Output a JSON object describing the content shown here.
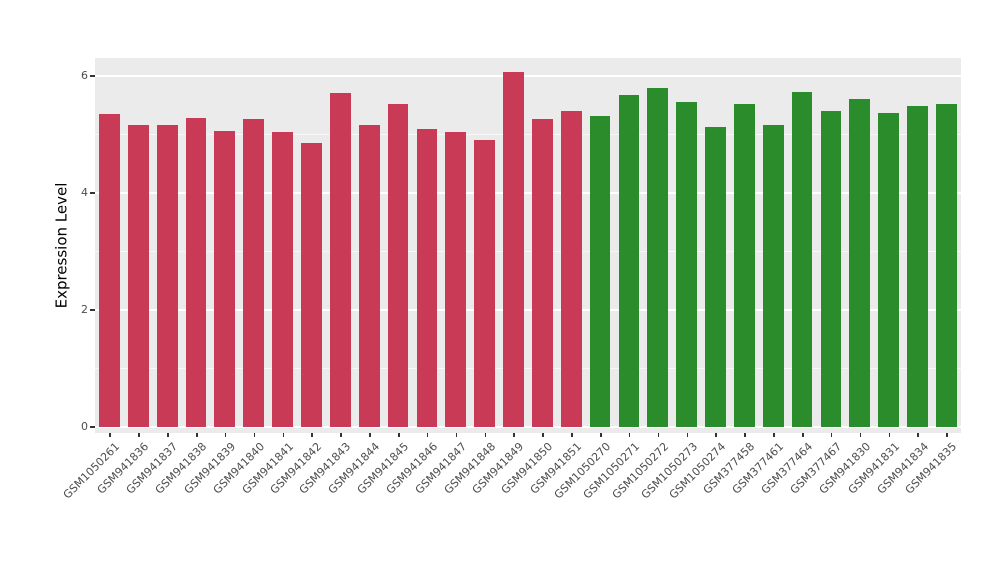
{
  "chart_data": {
    "type": "bar",
    "title": "",
    "xlabel": "",
    "ylabel": "Expression Level",
    "ylim": [
      0,
      6.4
    ],
    "yticks_major": [
      0,
      2,
      4,
      6
    ],
    "yticks_minor": [
      1,
      3,
      5
    ],
    "legend": "none",
    "grid": "white major and minor horizontal gridlines on gray panel",
    "panel_background": "#EBEBEB",
    "group_colors": {
      "group1": "#C93A57",
      "group2": "#2B8C2B"
    },
    "bars": [
      {
        "label": "GSM1050261",
        "value": 5.35,
        "color": "#C93A57"
      },
      {
        "label": "GSM941836",
        "value": 5.17,
        "color": "#C93A57"
      },
      {
        "label": "GSM941837",
        "value": 5.16,
        "color": "#C93A57"
      },
      {
        "label": "GSM941838",
        "value": 5.28,
        "color": "#C93A57"
      },
      {
        "label": "GSM941839",
        "value": 5.06,
        "color": "#C93A57"
      },
      {
        "label": "GSM941840",
        "value": 5.27,
        "color": "#C93A57"
      },
      {
        "label": "GSM941841",
        "value": 5.05,
        "color": "#C93A57"
      },
      {
        "label": "GSM941842",
        "value": 4.86,
        "color": "#C93A57"
      },
      {
        "label": "GSM941843",
        "value": 5.71,
        "color": "#C93A57"
      },
      {
        "label": "GSM941844",
        "value": 5.17,
        "color": "#C93A57"
      },
      {
        "label": "GSM941845",
        "value": 5.52,
        "color": "#C93A57"
      },
      {
        "label": "GSM941846",
        "value": 5.09,
        "color": "#C93A57"
      },
      {
        "label": "GSM941847",
        "value": 5.04,
        "color": "#C93A57"
      },
      {
        "label": "GSM941848",
        "value": 4.91,
        "color": "#C93A57"
      },
      {
        "label": "GSM941849",
        "value": 6.07,
        "color": "#C93A57"
      },
      {
        "label": "GSM941850",
        "value": 5.26,
        "color": "#C93A57"
      },
      {
        "label": "GSM941851",
        "value": 5.41,
        "color": "#C93A57"
      },
      {
        "label": "GSM1050270",
        "value": 5.31,
        "color": "#2B8C2B"
      },
      {
        "label": "GSM1050271",
        "value": 5.67,
        "color": "#2B8C2B"
      },
      {
        "label": "GSM1050272",
        "value": 5.8,
        "color": "#2B8C2B"
      },
      {
        "label": "GSM1050273",
        "value": 5.56,
        "color": "#2B8C2B"
      },
      {
        "label": "GSM1050274",
        "value": 5.13,
        "color": "#2B8C2B"
      },
      {
        "label": "GSM377458",
        "value": 5.52,
        "color": "#2B8C2B"
      },
      {
        "label": "GSM377461",
        "value": 5.16,
        "color": "#2B8C2B"
      },
      {
        "label": "GSM377464",
        "value": 5.73,
        "color": "#2B8C2B"
      },
      {
        "label": "GSM377467",
        "value": 5.41,
        "color": "#2B8C2B"
      },
      {
        "label": "GSM941830",
        "value": 5.6,
        "color": "#2B8C2B"
      },
      {
        "label": "GSM941831",
        "value": 5.36,
        "color": "#2B8C2B"
      },
      {
        "label": "GSM941834",
        "value": 5.48,
        "color": "#2B8C2B"
      },
      {
        "label": "GSM941835",
        "value": 5.53,
        "color": "#2B8C2B"
      }
    ]
  }
}
